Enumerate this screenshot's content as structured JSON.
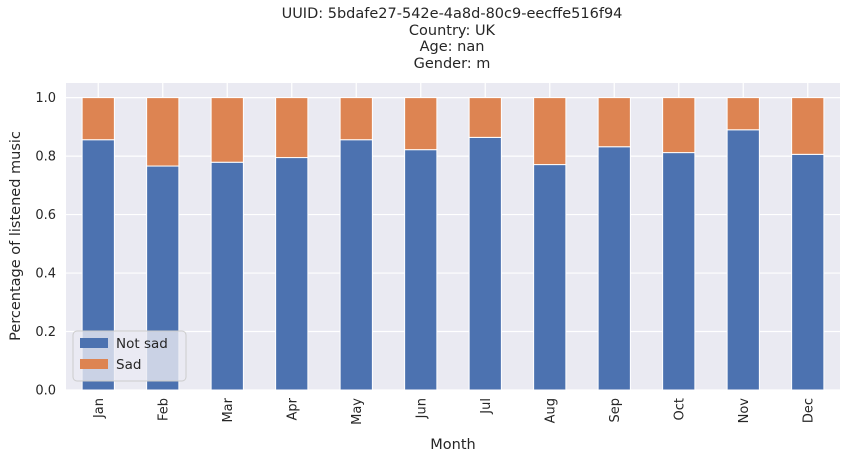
{
  "chart_data": {
    "type": "bar",
    "stacked": true,
    "title_lines": [
      "UUID: 5bdafe27-542e-4a8d-80c9-eecffe516f94",
      "Country: UK",
      "Age: nan",
      "Gender: m"
    ],
    "xlabel": "Month",
    "ylabel": "Percentage of listened music",
    "categories": [
      "Jan",
      "Feb",
      "Mar",
      "Apr",
      "May",
      "Jun",
      "Jul",
      "Aug",
      "Sep",
      "Oct",
      "Nov",
      "Dec"
    ],
    "series": [
      {
        "name": "Not sad",
        "color": "#4c72b0",
        "values": [
          0.856,
          0.766,
          0.779,
          0.795,
          0.856,
          0.822,
          0.864,
          0.771,
          0.832,
          0.812,
          0.89,
          0.806
        ]
      },
      {
        "name": "Sad",
        "color": "#dd8452",
        "values": [
          0.144,
          0.234,
          0.221,
          0.205,
          0.144,
          0.178,
          0.136,
          0.229,
          0.168,
          0.188,
          0.11,
          0.194
        ]
      }
    ],
    "ylim": [
      0,
      1.05
    ],
    "yticks": [
      "0.0",
      "0.2",
      "0.4",
      "0.6",
      "0.8",
      "1.0"
    ],
    "grid": true,
    "legend_position": "lower-left"
  }
}
